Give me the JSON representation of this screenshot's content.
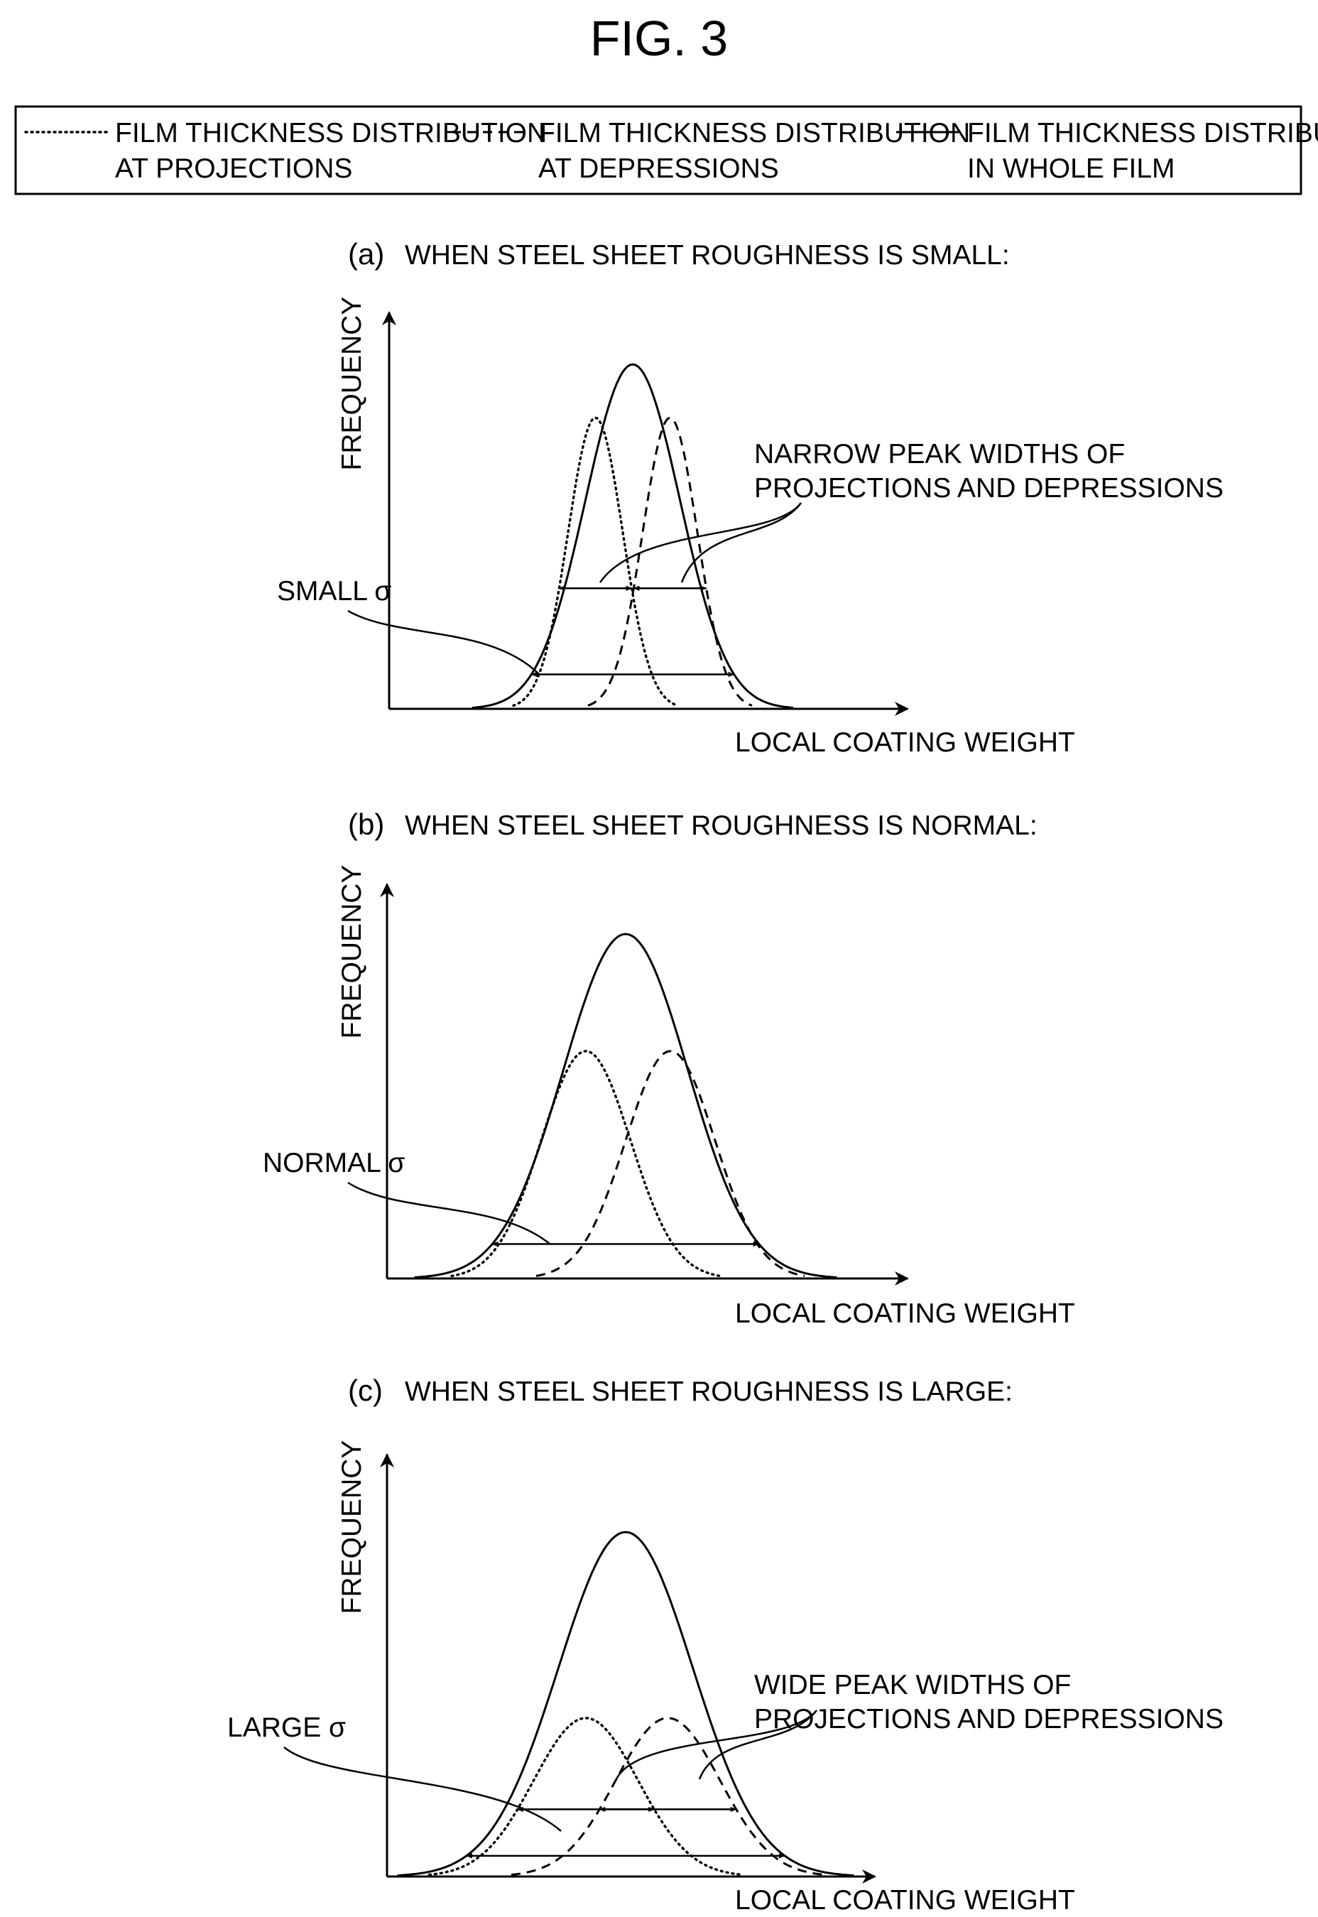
{
  "figure_title": "FIG. 3",
  "legend": [
    {
      "style": "dotted",
      "line1": "FILM THICKNESS DISTRIBUTION",
      "line2": "AT PROJECTIONS"
    },
    {
      "style": "dashed",
      "line1": "FILM THICKNESS DISTRIBUTION",
      "line2": "AT DEPRESSIONS"
    },
    {
      "style": "solid",
      "line1": "FILM THICKNESS DISTRIBUTION",
      "line2": "IN WHOLE FILM"
    }
  ],
  "chart_data": [
    {
      "type": "line",
      "panel_letter": "(a)",
      "title": "WHEN STEEL SHEET ROUGHNESS IS SMALL:",
      "xlabel": "LOCAL COATING WEIGHT",
      "ylabel": "FREQUENCY",
      "xlim": [
        0,
        10
      ],
      "ylim": [
        0,
        10
      ],
      "series": [
        {
          "style": "dotted",
          "kind": "gaussian",
          "mu": 4.15,
          "sigma": 0.55,
          "amp": 8.45
        },
        {
          "style": "dashed",
          "kind": "gaussian",
          "mu": 5.65,
          "sigma": 0.55,
          "amp": 8.45
        },
        {
          "style": "solid",
          "kind": "gaussian",
          "mu": 4.9,
          "sigma": 0.95,
          "amp": 10.0
        }
      ],
      "annotations": [
        {
          "text": "SMALL σ",
          "kind": "whole-width",
          "y": 1.0
        },
        {
          "lines": [
            "NARROW PEAK WIDTHS OF",
            "PROJECTIONS AND DEPRESSIONS"
          ],
          "kind": "peak-widths",
          "y": 3.5
        }
      ]
    },
    {
      "type": "line",
      "panel_letter": "(b)",
      "title": "WHEN STEEL SHEET ROUGHNESS IS NORMAL:",
      "xlabel": "LOCAL COATING WEIGHT",
      "ylabel": "FREQUENCY",
      "xlim": [
        0,
        10
      ],
      "ylim": [
        0,
        10
      ],
      "series": [
        {
          "style": "dotted",
          "kind": "gaussian",
          "mu": 4.0,
          "sigma": 0.9,
          "amp": 6.6
        },
        {
          "style": "dashed",
          "kind": "gaussian",
          "mu": 5.7,
          "sigma": 0.9,
          "amp": 6.6
        },
        {
          "style": "solid",
          "kind": "gaussian",
          "mu": 4.8,
          "sigma": 1.25,
          "amp": 10.0
        }
      ],
      "annotations": [
        {
          "text": "NORMAL σ",
          "kind": "whole-width",
          "y": 1.0
        }
      ]
    },
    {
      "type": "line",
      "panel_letter": "(c)",
      "title": "WHEN STEEL SHEET ROUGHNESS IS LARGE:",
      "xlabel": "LOCAL COATING WEIGHT",
      "ylabel": "FREQUENCY",
      "xlim": [
        0,
        10
      ],
      "ylim": [
        0,
        10
      ],
      "series": [
        {
          "style": "dotted",
          "kind": "gaussian",
          "mu": 4.0,
          "sigma": 1.05,
          "amp": 4.6
        },
        {
          "style": "dashed",
          "kind": "gaussian",
          "mu": 5.65,
          "sigma": 1.05,
          "amp": 4.6
        },
        {
          "style": "solid",
          "kind": "gaussian",
          "mu": 4.8,
          "sigma": 1.35,
          "amp": 10.0
        }
      ],
      "annotations": [
        {
          "text": "LARGE σ",
          "kind": "whole-width",
          "y": 0.6
        },
        {
          "lines": [
            "WIDE PEAK WIDTHS OF",
            "PROJECTIONS AND DEPRESSIONS"
          ],
          "kind": "peak-widths",
          "y": 1.95
        }
      ]
    }
  ]
}
